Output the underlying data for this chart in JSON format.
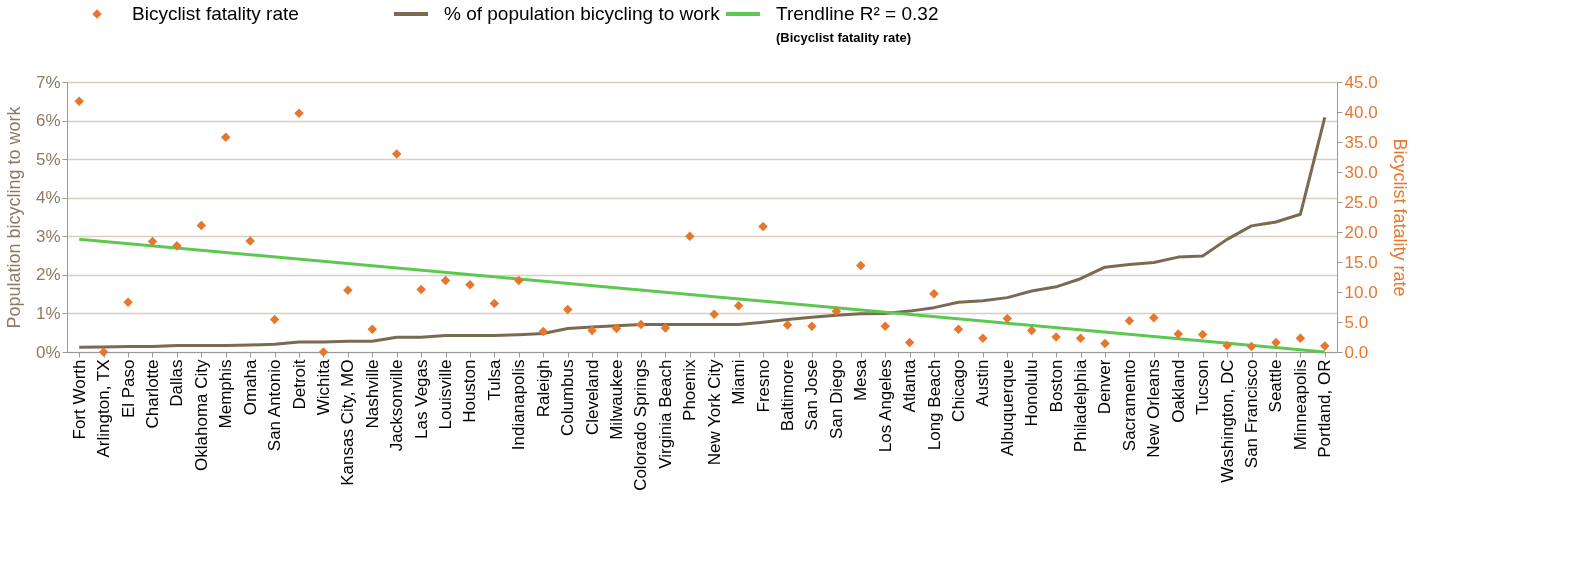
{
  "chart_data": {
    "type": "line",
    "categories": [
      "Fort Worth",
      "Arlington, TX",
      "El Paso",
      "Charlotte",
      "Dallas",
      "Oklahoma City",
      "Memphis",
      "Omaha",
      "San Antonio",
      "Detroit",
      "Wichita",
      "Kansas City, MO",
      "Nashville",
      "Jacksonville",
      "Las Vegas",
      "Louisville",
      "Houston",
      "Tulsa",
      "Indianapolis",
      "Raleigh",
      "Columbus",
      "Cleveland",
      "Milwaukee",
      "Colorado Springs",
      "Virginia Beach",
      "Phoenix",
      "New York City",
      "Miami",
      "Fresno",
      "Baltimore",
      "San Jose",
      "San Diego",
      "Mesa",
      "Los Angeles",
      "Atlanta",
      "Long Beach",
      "Chicago",
      "Austin",
      "Albuquerque",
      "Honolulu",
      "Boston",
      "Philadelphia",
      "Denver",
      "Sacramento",
      "New Orleans",
      "Oakland",
      "Tucson",
      "Washington, DC",
      "San Francisco",
      "Seattle",
      "Minneapolis",
      "Portland, OR"
    ],
    "ylabel": "Population bicycling to work",
    "y2label": "Bicyclist fatality rate",
    "ylim": [
      0,
      7
    ],
    "yticks": [
      {
        "value": 0,
        "label": "0%"
      },
      {
        "value": 1,
        "label": "1%"
      },
      {
        "value": 2,
        "label": "2%"
      },
      {
        "value": 3,
        "label": "3%"
      },
      {
        "value": 4,
        "label": "4%"
      },
      {
        "value": 5,
        "label": "5%"
      },
      {
        "value": 6,
        "label": "6%"
      },
      {
        "value": 7,
        "label": "7%"
      }
    ],
    "y2lim": [
      0,
      45
    ],
    "y2ticks": [
      {
        "value": 0,
        "label": "0.0"
      },
      {
        "value": 5,
        "label": "5.0"
      },
      {
        "value": 10,
        "label": "10.0"
      },
      {
        "value": 15,
        "label": "15.0"
      },
      {
        "value": 20,
        "label": "20.0"
      },
      {
        "value": 25,
        "label": "25.0"
      },
      {
        "value": 30,
        "label": "30.0"
      },
      {
        "value": 35,
        "label": "35.0"
      },
      {
        "value": 40,
        "label": "40.0"
      },
      {
        "value": 45,
        "label": "45.0"
      }
    ],
    "grid": "y",
    "legend": "top",
    "annotations": [
      "(Bicyclist fatality rate)"
    ],
    "series": [
      {
        "name": "Bicyclist fatality rate",
        "type": "scatter",
        "axis": "y2",
        "marker": "diamond",
        "color": "#e8772e",
        "values": [
          41.8,
          0,
          8.3,
          18.4,
          17.7,
          21.1,
          35.8,
          18.5,
          5.4,
          39.8,
          0,
          10.3,
          3.8,
          33.0,
          10.4,
          11.9,
          11.2,
          8.1,
          11.9,
          3.4,
          7.1,
          3.6,
          3.9,
          4.6,
          4.0,
          19.3,
          6.3,
          7.7,
          20.9,
          4.5,
          4.3,
          6.8,
          14.4,
          4.3,
          1.6,
          9.7,
          3.8,
          2.3,
          5.6,
          3.6,
          2.5,
          2.3,
          1.4,
          5.2,
          5.7,
          3.0,
          2.9,
          1.1,
          0.9,
          1.6,
          2.3,
          1.0
        ]
      },
      {
        "name": "% of population bicycling to work",
        "axis": "y",
        "marker": "none",
        "color": "#7a6a52",
        "values": [
          0.12,
          0.13,
          0.14,
          0.14,
          0.17,
          0.17,
          0.17,
          0.18,
          0.2,
          0.26,
          0.26,
          0.28,
          0.28,
          0.38,
          0.38,
          0.43,
          0.43,
          0.43,
          0.45,
          0.48,
          0.61,
          0.65,
          0.68,
          0.71,
          0.71,
          0.71,
          0.71,
          0.71,
          0.77,
          0.84,
          0.9,
          0.95,
          0.99,
          1.0,
          1.06,
          1.15,
          1.29,
          1.33,
          1.41,
          1.58,
          1.69,
          1.9,
          2.2,
          2.27,
          2.32,
          2.46,
          2.49,
          2.92,
          3.27,
          3.37,
          3.57,
          6.08
        ]
      },
      {
        "name": "Trendline R² = 0.32",
        "axis": "y2",
        "marker": "none",
        "color": "#5cc84f",
        "x": [
          "Fort Worth",
          "Portland, OR"
        ],
        "values": [
          18.8,
          0
        ]
      }
    ]
  }
}
